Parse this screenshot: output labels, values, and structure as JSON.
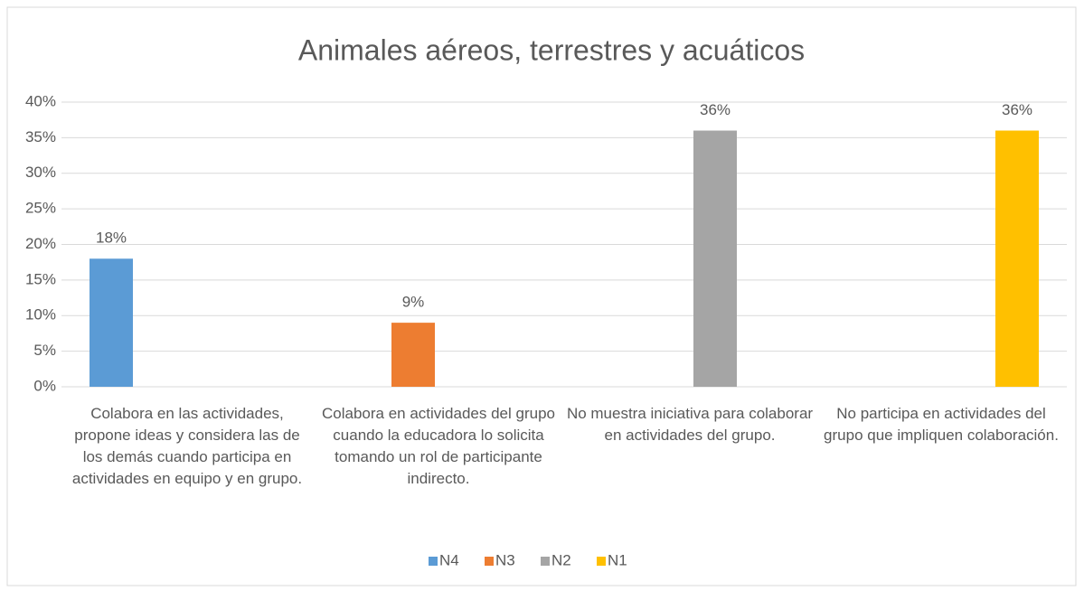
{
  "chart_data": {
    "type": "bar",
    "title": "Animales aéreos, terrestres y acuáticos",
    "categories": [
      "Colabora en las actividades, propone ideas y considera las de los demás cuando participa en actividades en equipo y en grupo.",
      "Colabora en actividades del grupo cuando la educadora lo solicita tomando un rol de participante indirecto.",
      "No muestra iniciativa para colaborar en actividades del grupo.",
      "No participa en actividades del grupo que impliquen colaboración."
    ],
    "series": [
      {
        "name": "N4",
        "color": "#5b9bd5",
        "values": [
          18,
          null,
          null,
          null
        ],
        "value_labels": [
          "18%",
          null,
          null,
          null
        ]
      },
      {
        "name": "N3",
        "color": "#ed7d31",
        "values": [
          null,
          9,
          null,
          null
        ],
        "value_labels": [
          null,
          "9%",
          null,
          null
        ]
      },
      {
        "name": "N2",
        "color": "#a5a5a5",
        "values": [
          null,
          null,
          36,
          null
        ],
        "value_labels": [
          null,
          null,
          "36%",
          null
        ]
      },
      {
        "name": "N1",
        "color": "#ffc000",
        "values": [
          null,
          null,
          null,
          36
        ],
        "value_labels": [
          null,
          null,
          null,
          "36%"
        ]
      }
    ],
    "ylim": [
      0,
      40
    ],
    "yticks": [
      {
        "value": 0,
        "label": "0%"
      },
      {
        "value": 5,
        "label": "5%"
      },
      {
        "value": 10,
        "label": "10%"
      },
      {
        "value": 15,
        "label": "15%"
      },
      {
        "value": 20,
        "label": "20%"
      },
      {
        "value": 25,
        "label": "25%"
      },
      {
        "value": 30,
        "label": "30%"
      },
      {
        "value": 35,
        "label": "35%"
      },
      {
        "value": 40,
        "label": "40%"
      }
    ],
    "grid": true,
    "legend": "bottom"
  }
}
